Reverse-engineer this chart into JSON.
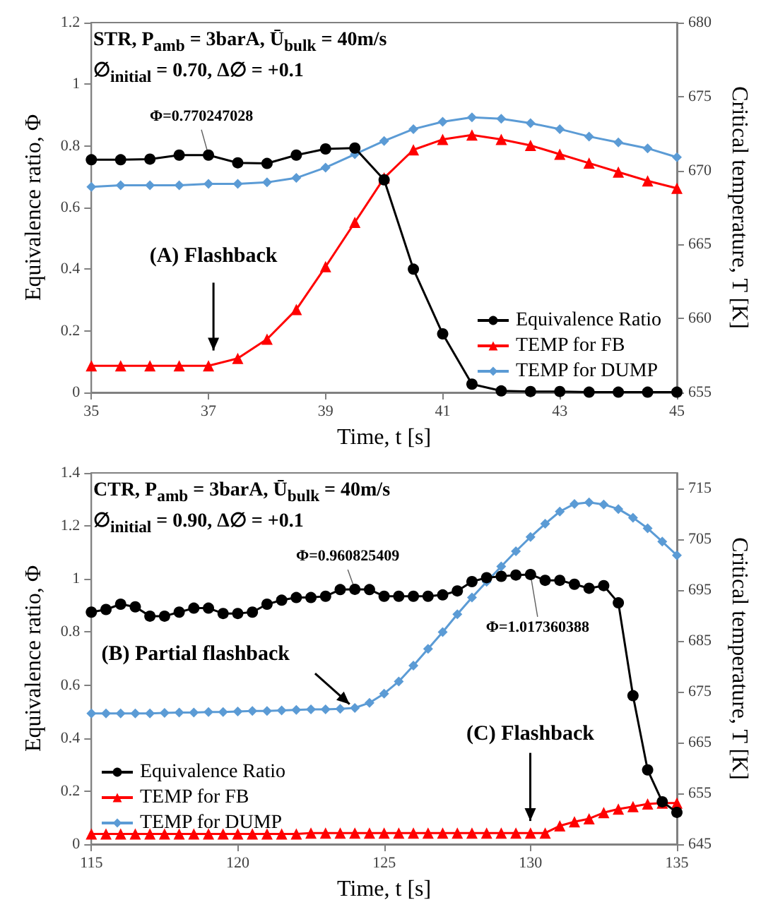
{
  "chart_data": [
    {
      "type": "line",
      "title": "STR, P$_{amb}$ = 3barA, Ū$_{bulk}$ = 40m/s",
      "subtitle": "∅$_{initial}$ = 0.70, Δ∅ = +0.1",
      "xlabel": "Time, t [s]",
      "ylabel": "Equivalence ratio, Φ",
      "y2label": "Critical temperature, T [K]",
      "x": [
        35,
        35.5,
        36,
        36.5,
        37,
        37.5,
        38,
        38.5,
        39,
        39.5,
        40,
        40.5,
        41,
        41.5,
        42,
        42.5,
        43,
        43.5,
        44,
        44.5,
        45
      ],
      "series": [
        {
          "name": "Equivalence Ratio",
          "color": "#000000",
          "marker": "circle",
          "values": [
            0.755,
            0.755,
            0.757,
            0.77,
            0.77,
            0.745,
            0.743,
            0.77,
            0.79,
            0.793,
            0.69,
            0.4,
            0.19,
            0.027,
            0.005,
            0.003,
            0.003,
            0.001,
            0.001,
            0.001,
            0.001
          ]
        },
        {
          "name": "TEMP for FB",
          "color": "#ff0000",
          "marker": "triangle",
          "axis": "y2",
          "values": [
            656.8,
            656.8,
            656.8,
            656.8,
            656.8,
            657.3,
            658.6,
            660.6,
            663.5,
            666.5,
            669.5,
            671.4,
            672.1,
            672.4,
            672.1,
            671.7,
            671.1,
            670.5,
            669.9,
            669.3,
            668.8
          ]
        },
        {
          "name": "TEMP for DUMP",
          "color": "#5b9bd5",
          "marker": "diamond",
          "axis": "y2",
          "values": [
            668.9,
            669,
            669,
            669,
            669.1,
            669.1,
            669.2,
            669.5,
            670.2,
            671.1,
            672,
            672.8,
            673.3,
            673.6,
            673.5,
            673.2,
            672.8,
            672.3,
            671.9,
            671.5,
            670.9
          ]
        }
      ],
      "xlim": [
        35,
        45
      ],
      "xticks": [
        35,
        37,
        39,
        41,
        43,
        45
      ],
      "ylim": [
        0,
        1.2
      ],
      "yticks": [
        0,
        0.2,
        0.4,
        0.6,
        0.8,
        1,
        1.2
      ],
      "y2lim": [
        655,
        680
      ],
      "y2ticks": [
        655,
        660,
        665,
        670,
        675,
        680
      ],
      "grid": false,
      "legend": "bottom right",
      "annotations": [
        {
          "text": "Φ=0.770247028",
          "x": 37,
          "y": 0.77
        },
        "(A) Flashback"
      ]
    },
    {
      "type": "line",
      "title": "CTR, P$_{amb}$ = 3barA, Ū$_{bulk}$ = 40m/s",
      "subtitle": "∅$_{initial}$ = 0.90, Δ∅ = +0.1",
      "xlabel": "Time, t [s]",
      "ylabel": "Equivalence ratio, Φ",
      "y2label": "Critical temperature, T [K]",
      "x": [
        115,
        115.5,
        116,
        116.5,
        117,
        117.5,
        118,
        118.5,
        119,
        119.5,
        120,
        120.5,
        121,
        121.5,
        122,
        122.5,
        123,
        123.5,
        124,
        124.5,
        125,
        125.5,
        126,
        126.5,
        127,
        127.5,
        128,
        128.5,
        129,
        129.5,
        130,
        130.5,
        131,
        131.5,
        132,
        132.5,
        133,
        133.5,
        134,
        134.5,
        135
      ],
      "series": [
        {
          "name": "Equivalence Ratio",
          "color": "#000000",
          "marker": "circle",
          "values": [
            0.875,
            0.885,
            0.905,
            0.895,
            0.86,
            0.86,
            0.875,
            0.89,
            0.89,
            0.87,
            0.87,
            0.875,
            0.905,
            0.92,
            0.93,
            0.93,
            0.935,
            0.96,
            0.961,
            0.96,
            0.935,
            0.935,
            0.935,
            0.935,
            0.94,
            0.955,
            0.99,
            1.005,
            1.01,
            1.015,
            1.017,
            0.995,
            0.995,
            0.98,
            0.965,
            0.975,
            0.91,
            0.56,
            0.28,
            0.16,
            0.12
          ]
        },
        {
          "name": "TEMP for FB",
          "color": "#ff0000",
          "marker": "triangle",
          "axis": "y2",
          "values": [
            647,
            647,
            647,
            647,
            647,
            647,
            647,
            647,
            647,
            647,
            647,
            647,
            647,
            647,
            647,
            647.2,
            647.2,
            647.2,
            647.2,
            647.2,
            647.2,
            647.2,
            647.2,
            647.2,
            647.2,
            647.2,
            647.2,
            647.2,
            647.2,
            647.2,
            647.2,
            647.2,
            648.6,
            649.4,
            650,
            651.2,
            651.9,
            652.4,
            652.9,
            653.1,
            653.1
          ]
        },
        {
          "name": "TEMP for DUMP",
          "color": "#5b9bd5",
          "marker": "diamond",
          "axis": "y2",
          "values": [
            670.7,
            670.7,
            670.7,
            670.7,
            670.7,
            670.8,
            670.9,
            670.9,
            671,
            671,
            671.1,
            671.2,
            671.2,
            671.3,
            671.4,
            671.5,
            671.5,
            671.6,
            671.8,
            672.8,
            674.6,
            677,
            680.1,
            683.4,
            686.7,
            690.2,
            693.5,
            696.6,
            699.6,
            702.6,
            705.4,
            708,
            710.4,
            711.9,
            712.2,
            711.8,
            710.9,
            709.2,
            707.1,
            704.5,
            701.8
          ]
        }
      ],
      "xlim": [
        115,
        135
      ],
      "xticks": [
        115,
        120,
        125,
        130,
        135
      ],
      "ylim": [
        0,
        1.4
      ],
      "yticks": [
        0,
        0.2,
        0.4,
        0.6,
        0.8,
        1,
        1.2,
        1.4
      ],
      "y2lim": [
        645,
        718
      ],
      "y2ticks": [
        645,
        655,
        665,
        675,
        685,
        695,
        705,
        715
      ],
      "grid": false,
      "legend": "bottom left",
      "annotations": [
        {
          "text": "Φ=0.960825409",
          "x": 124,
          "y": 0.961
        },
        {
          "text": "Φ=1.017360388",
          "x": 130,
          "y": 1.017
        },
        {
          "text": "(B) Partial flashback",
          "x": 124,
          "y": 0.51
        },
        "(C) Flashback"
      ]
    }
  ]
}
